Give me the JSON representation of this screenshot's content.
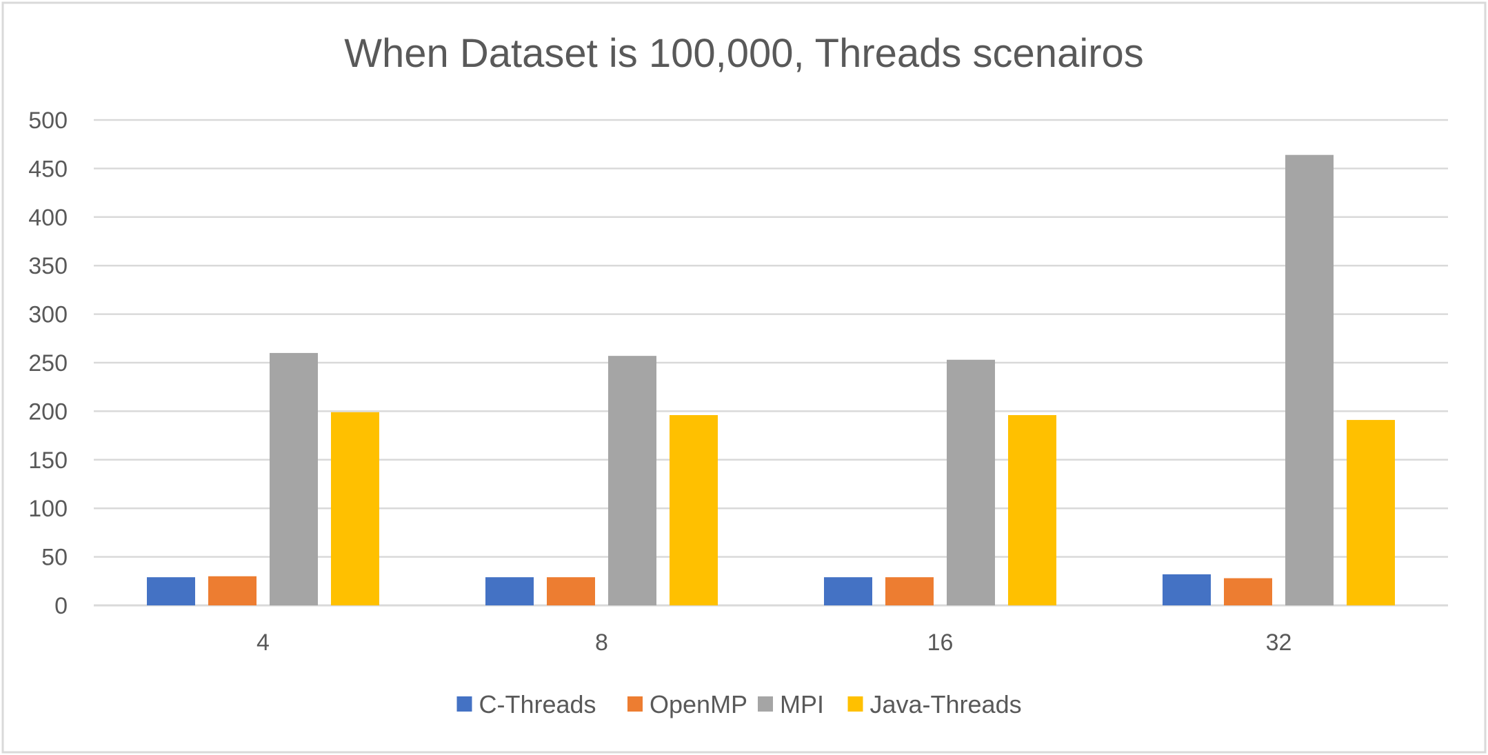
{
  "chart_data": {
    "type": "bar",
    "title": "When Dataset is 100,000, Threads scenairos",
    "xlabel": "",
    "ylabel": "",
    "categories": [
      "4",
      "8",
      "16",
      "32"
    ],
    "ylim": [
      0,
      500
    ],
    "yticks": [
      0,
      50,
      100,
      150,
      200,
      250,
      300,
      350,
      400,
      450,
      500
    ],
    "grid": true,
    "legend_position": "bottom",
    "series": [
      {
        "name": "C-Threads",
        "color": "#4472C4",
        "values": [
          29,
          29,
          29,
          32
        ]
      },
      {
        "name": "OpenMP",
        "color": "#ED7D31",
        "values": [
          30,
          29,
          29,
          28
        ]
      },
      {
        "name": "MPI",
        "color": "#A5A5A5",
        "values": [
          260,
          257,
          253,
          464
        ]
      },
      {
        "name": "Java-Threads",
        "color": "#FFC000",
        "values": [
          199,
          196,
          196,
          191
        ]
      }
    ]
  }
}
